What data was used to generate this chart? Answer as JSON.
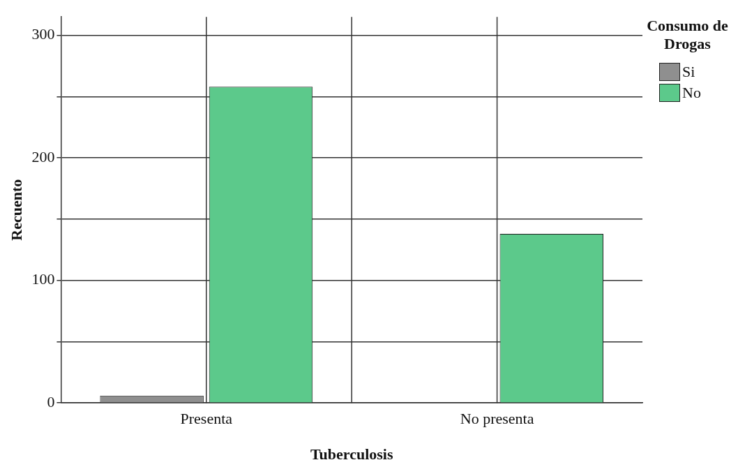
{
  "chart_data": {
    "type": "bar",
    "xlabel": "Tuberculosis",
    "ylabel": "Recuento",
    "legend_title": "Consumo de Drogas",
    "categories": [
      "Presenta",
      "No presenta"
    ],
    "series": [
      {
        "name": "Si",
        "color": "#8f8f8f",
        "values": [
          6,
          0
        ]
      },
      {
        "name": "No",
        "color": "#5cc98b",
        "values": [
          258,
          138
        ]
      }
    ],
    "ylim": [
      0,
      315
    ],
    "yticks": [
      0,
      {
        "value": 50,
        "label": null
      },
      100,
      {
        "value": 150,
        "label": null
      },
      200,
      {
        "value": 250,
        "label": null
      },
      300
    ],
    "grid": true,
    "legend": "top right"
  }
}
